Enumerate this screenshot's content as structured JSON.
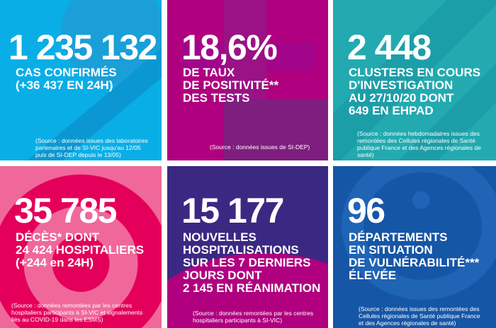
{
  "tiles": [
    {
      "value": "1 235 132",
      "label_lines": [
        "CAS CONFIRMÉS",
        "(+36 437 EN 24H)"
      ],
      "source_lines": [
        "(Source : données issues des laboratoires",
        "partenaires et de SI-VIC jusqu'au 12/05",
        "puis de SI-DEP depuis le 13/05)"
      ],
      "color": "#0aaee6"
    },
    {
      "value": "18,6%",
      "label_lines": [
        "DE TAUX",
        "DE POSITIVITÉ**",
        "DES TESTS"
      ],
      "source_lines": [
        "(Source : données issues de SI-DEP)"
      ],
      "color": "#b0007f"
    },
    {
      "value": "2 448",
      "label_lines": [
        "CLUSTERS EN COURS",
        "D'INVESTIGATION",
        "AU 27/10/20 DONT",
        "649 EN EHPAD"
      ],
      "source_lines": [
        "(Source : données hebdomadaires issues des",
        "remontées des Cellules régionales de Santé",
        "publique France et des Agences régionales de",
        "santé)"
      ],
      "color": "#22aab0"
    },
    {
      "value": "35 785",
      "label_lines": [
        "DÉCÈS* DONT",
        "24 424 HOSPITALIERS",
        "(+244 en 24H)"
      ],
      "source_lines": [
        "(Source : données remontées par les centres",
        "hospitaliers participants à SI-VIC et signalements",
        "liés au COVID-19 dans les ESMS)"
      ],
      "color": "#f0689a"
    },
    {
      "value": "15 177",
      "label_lines": [
        "NOUVELLES",
        "HOSPITALISATIONS",
        "SUR LES 7 DERNIERS",
        "JOURS DONT",
        "2 145 EN RÉANIMATION"
      ],
      "source_lines": [
        "(Source : données remontées par les centres",
        "hospitaliers participants à SI-VIC)"
      ],
      "color": "#3b2883"
    },
    {
      "value": "96",
      "label_lines": [
        "DÉPARTEMENTS",
        "EN SITUATION",
        "DE VULNÉRABILITÉ***",
        "ÉLEVÉE"
      ],
      "source_lines": [
        "(Source : données issues des remontées des",
        "Cellules régionales de Santé publique France",
        "et des Agences régionales de santé)"
      ],
      "color": "#1656a6"
    }
  ]
}
